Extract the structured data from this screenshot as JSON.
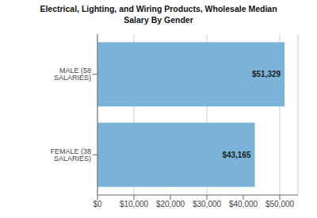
{
  "chart_data": {
    "type": "bar",
    "orientation": "horizontal",
    "title": "Electrical, Lighting, and Wiring Products, Wholesale Median\nSalary By Gender",
    "categories": [
      "MALE (58 SALARIES)",
      "FEMALE (38 SALARIES)"
    ],
    "values": [
      51329,
      43165
    ],
    "value_labels": [
      "$51,329",
      "$43,165"
    ],
    "data_labels": true,
    "color": "#7ab2d8",
    "xlim": [
      0,
      55000
    ],
    "xticks": [
      {
        "value": 0,
        "label": "$0"
      },
      {
        "value": 10000,
        "label": "$10,000"
      },
      {
        "value": 20000,
        "label": "$20,000"
      },
      {
        "value": 30000,
        "label": "$30,000"
      },
      {
        "value": 40000,
        "label": "$40,000"
      },
      {
        "value": 50000,
        "label": "$50,000"
      }
    ],
    "grid": true
  }
}
